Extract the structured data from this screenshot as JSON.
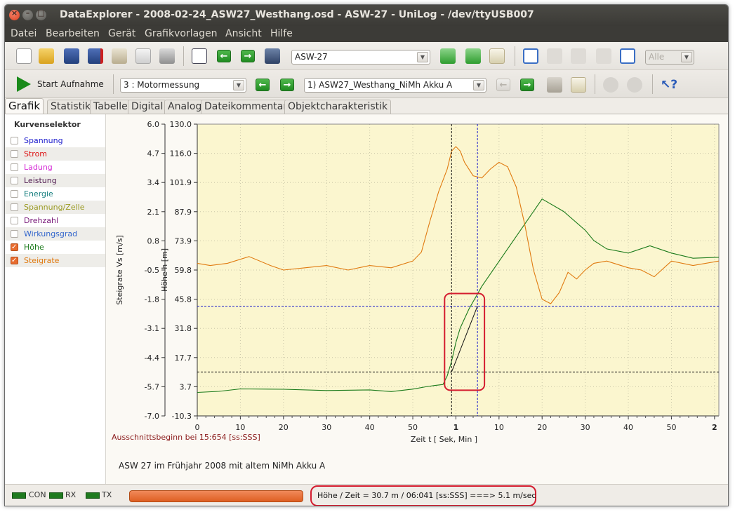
{
  "window": {
    "title": "DataExplorer  -  2008-02-24_ASW27_Westhang.osd  -  ASW-27  -  UniLog  -  /dev/ttyUSB007"
  },
  "menu": [
    "Datei",
    "Bearbeiten",
    "Gerät",
    "Grafikvorlagen",
    "Ansicht",
    "Hilfe"
  ],
  "toolbar1": {
    "device_combo": "ASW-27",
    "zoom_combo": "Alle"
  },
  "toolbar2": {
    "start_label": "Start Aufnahme",
    "channel_combo": "3 : Motormessung",
    "record_combo": "1) ASW27_Westhang_NiMh Akku A"
  },
  "tabs": [
    "Grafik",
    "Statistik",
    "Tabelle",
    "Digital",
    "Analog",
    "Dateikommentar",
    "Objektcharakteristik"
  ],
  "curve_selector": {
    "header": "Kurvenselektor",
    "items": [
      {
        "label": "Spannung",
        "color": "#1a1acc",
        "checked": false
      },
      {
        "label": "Strom",
        "color": "#dd1111",
        "checked": false
      },
      {
        "label": "Ladung",
        "color": "#d428d4",
        "checked": false
      },
      {
        "label": "Leistung",
        "color": "#552255",
        "checked": false
      },
      {
        "label": "Energie",
        "color": "#1a8080",
        "checked": false
      },
      {
        "label": "Spannung/Zelle",
        "color": "#9a9a22",
        "checked": false
      },
      {
        "label": "Drehzahl",
        "color": "#7a1a7a",
        "checked": false
      },
      {
        "label": "Wirkungsgrad",
        "color": "#3366cc",
        "checked": false
      },
      {
        "label": "Höhe",
        "color": "#1a7a1a",
        "checked": true
      },
      {
        "label": "Steigrate",
        "color": "#e07a10",
        "checked": true
      }
    ]
  },
  "chart_data": {
    "type": "line",
    "xlabel": "Zeit   t   [ Sek, Min ]",
    "x_ticks": [
      "0",
      "10",
      "20",
      "30",
      "40",
      "50",
      "1",
      "10",
      "20",
      "30",
      "40",
      "50",
      "2"
    ],
    "x_tick_min_indices": [
      6,
      12
    ],
    "xlim": [
      0,
      121
    ],
    "axes": [
      {
        "label": "Steigrate   Vs   [m/s]",
        "ticks": [
          "6.0",
          "4.7",
          "3.4",
          "2.1",
          "0.8",
          "-0.5",
          "-1.8",
          "-3.1",
          "-4.4",
          "-5.7",
          "-7.0"
        ],
        "ylim": [
          -7.0,
          6.0
        ],
        "color": "#333333"
      },
      {
        "label": "Höhe   h   [m]",
        "ticks": [
          "130.0",
          "116.0",
          "101.9",
          "87.9",
          "73.9",
          "59.8",
          "45.8",
          "31.8",
          "17.7",
          "3.7",
          "-10.3"
        ],
        "ylim": [
          -10.3,
          130.0
        ],
        "color": "#333333"
      }
    ],
    "series": [
      {
        "name": "Höhe",
        "axis": 1,
        "color": "#1a7a1a",
        "x": [
          0,
          5,
          10,
          20,
          30,
          40,
          45,
          50,
          53,
          55,
          57,
          58,
          59,
          60,
          61,
          63,
          66,
          70,
          75,
          80,
          85,
          90,
          92,
          95,
          100,
          105,
          110,
          115,
          121
        ],
        "y": [
          1.0,
          1.5,
          2.7,
          2.5,
          1.9,
          2.2,
          1.4,
          2.6,
          3.7,
          4.3,
          4.8,
          9.0,
          16.0,
          25.0,
          32.0,
          41.0,
          52.0,
          64.0,
          79.0,
          94.0,
          88.0,
          79.0,
          74.0,
          70.0,
          68.0,
          71.5,
          68.0,
          65.5,
          66.0
        ]
      },
      {
        "name": "Steigrate",
        "axis": 0,
        "color": "#e07a10",
        "x": [
          0,
          3,
          7,
          12,
          17,
          20,
          25,
          30,
          35,
          40,
          45,
          50,
          52,
          54,
          56,
          58,
          59,
          60,
          61,
          62,
          64,
          66,
          68,
          70,
          72,
          74,
          76,
          78,
          80,
          82,
          84,
          86,
          88,
          90,
          92,
          95,
          100,
          103,
          106,
          110,
          115,
          121
        ],
        "y": [
          -0.2,
          -0.3,
          -0.2,
          0.1,
          -0.3,
          -0.5,
          -0.4,
          -0.3,
          -0.5,
          -0.3,
          -0.4,
          -0.1,
          0.3,
          1.7,
          3.0,
          4.0,
          4.8,
          5.0,
          4.8,
          4.3,
          3.7,
          3.6,
          4.0,
          4.3,
          4.1,
          3.2,
          1.5,
          -0.5,
          -1.8,
          -2.0,
          -1.5,
          -0.6,
          -0.9,
          -0.5,
          -0.2,
          -0.1,
          -0.4,
          -0.5,
          -0.8,
          -0.1,
          -0.3,
          -0.1
        ]
      }
    ],
    "cursors": {
      "vertical_1": 59,
      "vertical_2": 65,
      "horizontal_1_height": 42.5,
      "horizontal_2_height": 10.8
    },
    "grid": true,
    "bottom_left_note": "Ausschnittsbeginn bei 15:654 [ss:SSS]",
    "caption": "ASW 27 im Frühjahr 2008 mit altem NiMh Akku A"
  },
  "status": {
    "leds": [
      "CON",
      "RX",
      "TX"
    ],
    "progress": 1.0,
    "message": "Höhe / Zeit = 30.7 m / 06:041 [ss:SSS] ===> 5.1 m/sec"
  }
}
